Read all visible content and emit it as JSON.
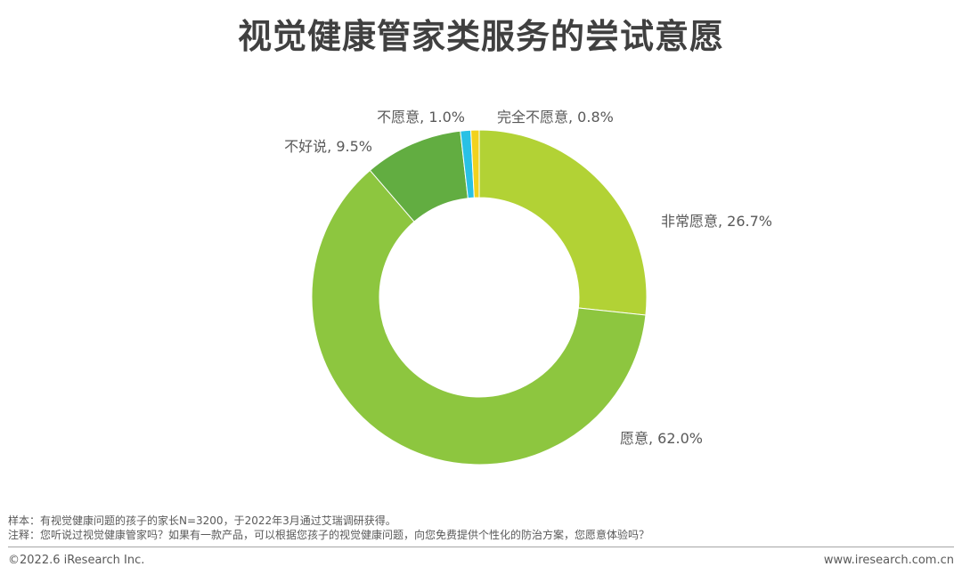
{
  "chart_data": {
    "type": "pie",
    "title": "视觉健康管家类服务的尝试意愿",
    "donut": true,
    "start_angle": "12 o'clock, clockwise",
    "slices": [
      {
        "label": "非常愿意",
        "value": 26.7,
        "color": "#b2d235",
        "text": "非常愿意, 26.7%"
      },
      {
        "label": "愿意",
        "value": 62.0,
        "color": "#8dc63f",
        "text": "愿意, 62.0%"
      },
      {
        "label": "不好说",
        "value": 9.5,
        "color": "#62ad41",
        "text": "不好说, 9.5%"
      },
      {
        "label": "不愿意",
        "value": 1.0,
        "color": "#29c1e5",
        "text": "不愿意, 1.0%"
      },
      {
        "label": "完全不愿意",
        "value": 0.8,
        "color": "#f2d21d",
        "text": "完全不愿意, 0.8%"
      }
    ]
  },
  "notes": {
    "sample": "样本：有视觉健康问题的孩子的家长N=3200，于2022年3月通过艾瑞调研获得。",
    "note": "注释：您听说过视觉健康管家吗？如果有一款产品，可以根据您孩子的视觉健康问题，向您免费提供个性化的防治方案，您愿意体验吗？"
  },
  "footer": {
    "copyright": "©2022.6 iResearch Inc.",
    "website": "www.iresearch.com.cn"
  }
}
